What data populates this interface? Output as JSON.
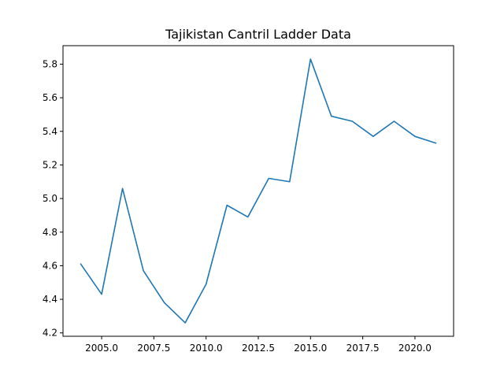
{
  "chart_data": {
    "type": "line",
    "title": "Tajikistan Cantril Ladder Data",
    "xlabel": "",
    "ylabel": "",
    "xlim": [
      2003.15,
      2021.85
    ],
    "ylim": [
      4.18,
      5.91
    ],
    "x_ticks": [
      2005.0,
      2007.5,
      2010.0,
      2012.5,
      2015.0,
      2017.5,
      2020.0
    ],
    "x_tick_labels": [
      "2005.0",
      "2007.5",
      "2010.0",
      "2012.5",
      "2015.0",
      "2017.5",
      "2020.0"
    ],
    "y_ticks": [
      4.2,
      4.4,
      4.6,
      4.8,
      5.0,
      5.2,
      5.4,
      5.6,
      5.8
    ],
    "y_tick_labels": [
      "4.2",
      "4.4",
      "4.6",
      "4.8",
      "5.0",
      "5.2",
      "5.4",
      "5.6",
      "5.8"
    ],
    "grid": false,
    "series": [
      {
        "color": "#1f77b4",
        "x": [
          2004,
          2005,
          2006,
          2007,
          2008,
          2009,
          2010,
          2011,
          2012,
          2013,
          2014,
          2015,
          2016,
          2017,
          2018,
          2019,
          2020,
          2021
        ],
        "y": [
          4.61,
          4.43,
          5.06,
          4.57,
          4.38,
          4.26,
          4.49,
          4.96,
          4.89,
          5.12,
          5.1,
          5.83,
          5.49,
          5.46,
          5.37,
          5.46,
          5.37,
          5.33
        ]
      }
    ]
  }
}
